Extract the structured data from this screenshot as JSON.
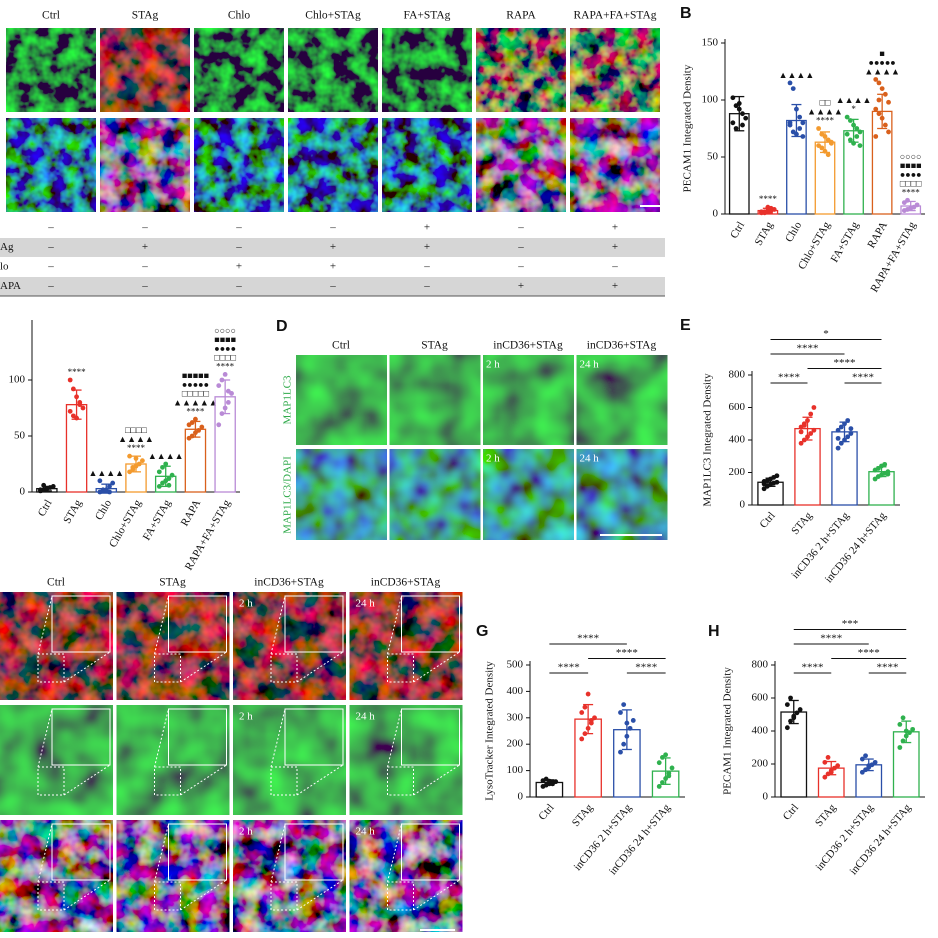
{
  "panel_a": {
    "columns": [
      "Ctrl",
      "STAg",
      "Chlo",
      "Chlo+STAg",
      "FA+STAg",
      "RAPA",
      "RAPA+FA+STAg"
    ],
    "table": {
      "rows": [
        {
          "cells": [
            "–",
            "–",
            "–",
            "–",
            "+",
            "–",
            "+"
          ]
        },
        {
          "label": "Ag",
          "cells": [
            "–",
            "+",
            "–",
            "+",
            "+",
            "–",
            "+"
          ]
        },
        {
          "label": "lo",
          "cells": [
            "–",
            "–",
            "+",
            "+",
            "–",
            "–",
            "–"
          ]
        },
        {
          "label": "APA",
          "cells": [
            "–",
            "–",
            "–",
            "–",
            "–",
            "+",
            "+"
          ]
        }
      ]
    }
  },
  "panel_d": {
    "label": "D",
    "columns": [
      "Ctrl",
      "STAg",
      "inCD36+STAg",
      "inCD36+STAg"
    ],
    "rows": [
      "MAP1LC3",
      "MAP1LC3/DAPI"
    ],
    "overlays": [
      "2 h",
      "24 h"
    ]
  },
  "panel_f": {
    "columns": [
      "Ctrl",
      "STAg",
      "inCD36+STAg",
      "inCD36+STAg"
    ],
    "overlays": [
      "2 h",
      "24 h"
    ]
  },
  "chart_data": [
    {
      "type": "bar",
      "label": "B",
      "ylabel": "PECAM1 Integrated Density",
      "categories": [
        "Ctrl",
        "STAg",
        "Chlo",
        "Chlo+STAg",
        "FA+STAg",
        "RAPA",
        "RAPA+FA+STAg"
      ],
      "colors": [
        "#111111",
        "#e8312a",
        "#2a4fa8",
        "#f39a2e",
        "#2fb14e",
        "#d9601c",
        "#b98ad6"
      ],
      "values": [
        88,
        3,
        82,
        63,
        73,
        90,
        7
      ],
      "errors": [
        15,
        2,
        14,
        9,
        10,
        15,
        4
      ],
      "points": [
        [
          102,
          95,
          92,
          88,
          84,
          80,
          75,
          97,
          78
        ],
        [
          1,
          2,
          3,
          5,
          4,
          2,
          1,
          6,
          3
        ],
        [
          115,
          110,
          92,
          85,
          80,
          78,
          72,
          70,
          75,
          68,
          80
        ],
        [
          75,
          70,
          68,
          65,
          63,
          60,
          58,
          55,
          52,
          62
        ],
        [
          85,
          82,
          78,
          75,
          72,
          70,
          65,
          62,
          68,
          60
        ],
        [
          118,
          115,
          110,
          105,
          98,
          92,
          88,
          84,
          78,
          72,
          68,
          100
        ],
        [
          3,
          4,
          5,
          6,
          8,
          10,
          12,
          5
        ]
      ],
      "annotations": [
        [],
        [
          "****"
        ],
        [
          "▲▲▲▲"
        ],
        [
          "□□",
          "▲▲▲▲",
          "****"
        ],
        [
          "▲▲▲▲",
          "*"
        ],
        [
          "■",
          "●●●●●",
          "▲▲▲▲"
        ],
        [
          "○○○○",
          "■■■■",
          "●●●●",
          "□□□□",
          "****"
        ]
      ],
      "ylim": [
        0,
        150
      ],
      "yticks": [
        0,
        50,
        100,
        150
      ]
    },
    {
      "type": "bar",
      "categories": [
        "Ctrl",
        "STAg",
        "Chlo",
        "Chlo+STAg",
        "FA+STAg",
        "RAPA",
        "RAPA+FA+STAg"
      ],
      "colors": [
        "#111111",
        "#e8312a",
        "#2a4fa8",
        "#f39a2e",
        "#2fb14e",
        "#d9601c",
        "#b98ad6"
      ],
      "values": [
        3,
        78,
        3,
        25,
        14,
        56,
        85
      ],
      "errors": [
        2,
        13,
        4,
        7,
        9,
        7,
        15
      ],
      "points": [
        [
          1,
          2,
          3,
          4,
          5,
          2,
          6,
          3
        ],
        [
          100,
          92,
          85,
          80,
          75,
          72,
          68,
          66,
          78
        ],
        [
          0,
          1,
          2,
          5,
          8,
          10,
          2,
          1,
          0
        ],
        [
          18,
          20,
          23,
          25,
          28,
          32,
          22,
          30
        ],
        [
          5,
          8,
          10,
          12,
          15,
          18,
          22,
          25,
          6
        ],
        [
          48,
          50,
          53,
          55,
          58,
          60,
          62,
          65
        ],
        [
          60,
          70,
          75,
          80,
          88,
          95,
          100,
          105,
          90
        ]
      ],
      "annotations": [
        [],
        [
          "****"
        ],
        [
          "▲▲▲▲"
        ],
        [
          "□□□□",
          "▲▲▲▲",
          "****"
        ],
        [
          "▲▲▲▲"
        ],
        [
          "■■■■■",
          "●●●●●",
          "□□□□□",
          "▲▲▲▲▲",
          "****"
        ],
        [
          "○○○○",
          "■■■■",
          "●●●●",
          "□□□□",
          "****"
        ]
      ],
      "ylim": [
        0,
        150
      ],
      "yticks": [
        0,
        50,
        100
      ]
    },
    {
      "type": "bar",
      "label": "E",
      "ylabel": "MAP1LC3 Integrated Density",
      "categories": [
        "Ctrl",
        "STAg",
        "inCD36 2 h+STAg",
        "inCD36 24 h+STAg"
      ],
      "colors": [
        "#111111",
        "#e8312a",
        "#2a4fa8",
        "#2fb14e"
      ],
      "values": [
        140,
        470,
        450,
        205
      ],
      "errors": [
        25,
        70,
        60,
        30
      ],
      "points": [
        [
          100,
          115,
          125,
          135,
          140,
          145,
          150,
          160,
          170,
          180,
          130,
          120
        ],
        [
          380,
          400,
          420,
          440,
          460,
          480,
          500,
          520,
          560,
          600,
          450,
          490
        ],
        [
          350,
          380,
          400,
          420,
          440,
          460,
          480,
          500,
          520,
          470,
          410
        ],
        [
          160,
          175,
          185,
          195,
          205,
          215,
          225,
          240,
          250,
          190
        ]
      ],
      "comparisons": [
        {
          "pair": [
            "Ctrl",
            "STAg"
          ],
          "label": "****"
        },
        {
          "pair": [
            "inCD36 2 h+STAg",
            "inCD36 24 h+STAg"
          ],
          "label": "****"
        },
        {
          "pair": [
            "STAg",
            "inCD36 24 h+STAg"
          ],
          "label": "****"
        },
        {
          "pair": [
            "Ctrl",
            "inCD36 2 h+STAg"
          ],
          "label": "****"
        },
        {
          "pair": [
            "Ctrl",
            "inCD36 24 h+STAg"
          ],
          "label": "*"
        }
      ],
      "ylim": [
        0,
        800
      ],
      "yticks": [
        0,
        200,
        400,
        600,
        800
      ]
    },
    {
      "type": "bar",
      "label": "G",
      "ylabel": "LysoTracker Integrated Density",
      "categories": [
        "Ctrl",
        "STAg",
        "inCD36 2 h+STAg",
        "inCD36 24 h+STAg"
      ],
      "colors": [
        "#111111",
        "#e8312a",
        "#2a4fa8",
        "#2fb14e"
      ],
      "values": [
        55,
        295,
        255,
        98
      ],
      "errors": [
        10,
        55,
        75,
        50
      ],
      "points": [
        [
          40,
          45,
          50,
          55,
          58,
          62,
          68,
          60,
          50
        ],
        [
          220,
          240,
          260,
          280,
          300,
          320,
          340,
          390,
          290
        ],
        [
          170,
          200,
          230,
          260,
          290,
          320,
          350,
          280
        ],
        [
          40,
          55,
          70,
          90,
          110,
          130,
          150,
          160,
          80
        ]
      ],
      "comparisons": [
        {
          "pair": [
            "Ctrl",
            "STAg"
          ],
          "label": "****"
        },
        {
          "pair": [
            "inCD36 2 h+STAg",
            "inCD36 24 h+STAg"
          ],
          "label": "****"
        },
        {
          "pair": [
            "STAg",
            "inCD36 24 h+STAg"
          ],
          "label": "****"
        },
        {
          "pair": [
            "Ctrl",
            "inCD36 2 h+STAg"
          ],
          "label": "****"
        }
      ],
      "ylim": [
        0,
        500
      ],
      "yticks": [
        0,
        100,
        200,
        300,
        400,
        500
      ]
    },
    {
      "type": "bar",
      "label": "H",
      "ylabel": "PECAM1 Integrated Density",
      "categories": [
        "Ctrl",
        "STAg",
        "inCD36 2 h+STAg",
        "inCD36 24 h+STAg"
      ],
      "colors": [
        "#111111",
        "#e8312a",
        "#2a4fa8",
        "#2fb14e"
      ],
      "values": [
        515,
        175,
        195,
        395
      ],
      "errors": [
        70,
        40,
        35,
        65
      ],
      "points": [
        [
          420,
          460,
          490,
          510,
          530,
          560,
          600,
          480
        ],
        [
          120,
          140,
          160,
          175,
          190,
          210,
          240,
          150
        ],
        [
          150,
          165,
          180,
          195,
          210,
          230,
          250,
          190
        ],
        [
          300,
          340,
          370,
          390,
          410,
          440,
          480,
          400
        ]
      ],
      "comparisons": [
        {
          "pair": [
            "Ctrl",
            "STAg"
          ],
          "label": "****"
        },
        {
          "pair": [
            "inCD36 2 h+STAg",
            "inCD36 24 h+STAg"
          ],
          "label": "****"
        },
        {
          "pair": [
            "STAg",
            "inCD36 24 h+STAg"
          ],
          "label": "****"
        },
        {
          "pair": [
            "Ctrl",
            "inCD36 2 h+STAg"
          ],
          "label": "****"
        },
        {
          "pair": [
            "Ctrl",
            "inCD36 24 h+STAg"
          ],
          "label": "***"
        }
      ],
      "ylim": [
        0,
        800
      ],
      "yticks": [
        0,
        200,
        400,
        600,
        800
      ]
    }
  ]
}
